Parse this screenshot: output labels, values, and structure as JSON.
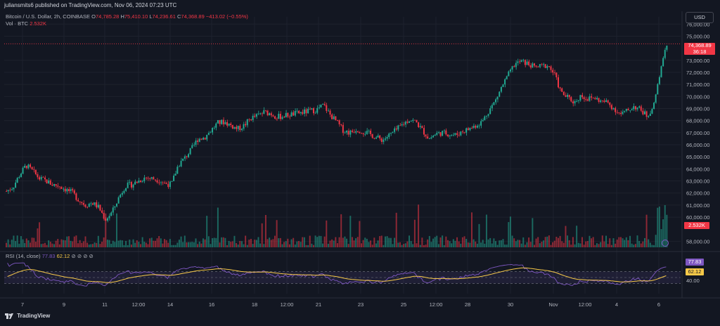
{
  "header": {
    "publish_line": "juliansmits6 published on TradingView.com, Nov 06, 2024 07:23 UTC"
  },
  "legend": {
    "symbol": "Bitcoin / U.S. Dollar, 2h, COINBASE",
    "o_label": "O",
    "o_value": "74,785.28",
    "h_label": "H",
    "h_value": "75,410.10",
    "l_label": "L",
    "l_value": "74,236.61",
    "c_label": "C",
    "c_value": "74,368.89",
    "change": "−413.02 (−0.55%)",
    "vol_label": "Vol · BTC",
    "vol_value": "2.532K"
  },
  "currency": "USD",
  "price_badge": {
    "price": "74,368.89",
    "countdown": "36:18"
  },
  "volume_badge": "2.532K",
  "rsi": {
    "label": "RSI (14, close)",
    "value": "77.83",
    "ma_value": "62.12",
    "icons": "⊘ ⊘ ⊘ ⊘",
    "badge_rsi": "77.83",
    "badge_ma": "62.12",
    "level_label": "40.00"
  },
  "brand": "TradingView",
  "colors": {
    "up": "#22ab94",
    "down": "#f23645",
    "rsi": "#7e57c2",
    "rsi_ma": "#f7c948",
    "bg": "#131722"
  },
  "chart_data": {
    "type": "line",
    "price_ticks": [
      "76,000.00",
      "75,000.00",
      "73,000.00",
      "72,000.00",
      "71,000.00",
      "70,000.00",
      "69,000.00",
      "68,000.00",
      "67,000.00",
      "66,000.00",
      "65,000.00",
      "64,000.00",
      "63,000.00",
      "62,000.00",
      "61,000.00",
      "60,000.00",
      "58,000.00"
    ],
    "x_ticks": [
      "7",
      "9",
      "11",
      "12:00",
      "14",
      "16",
      "18",
      "12:00",
      "21",
      "23",
      "25",
      "12:00",
      "28",
      "30",
      "Nov",
      "12:00",
      "4",
      "6"
    ],
    "close_path": [
      [
        0,
        62150
      ],
      [
        0.01,
        62500
      ],
      [
        0.02,
        63500
      ],
      [
        0.03,
        64300
      ],
      [
        0.04,
        63800
      ],
      [
        0.05,
        63200
      ],
      [
        0.06,
        63000
      ],
      [
        0.07,
        62700
      ],
      [
        0.08,
        62600
      ],
      [
        0.09,
        62300
      ],
      [
        0.1,
        62000
      ],
      [
        0.11,
        61400
      ],
      [
        0.12,
        61000
      ],
      [
        0.13,
        61200
      ],
      [
        0.14,
        60800
      ],
      [
        0.15,
        59800
      ],
      [
        0.16,
        60400
      ],
      [
        0.17,
        61600
      ],
      [
        0.18,
        62600
      ],
      [
        0.19,
        62700
      ],
      [
        0.2,
        63000
      ],
      [
        0.21,
        63300
      ],
      [
        0.22,
        63200
      ],
      [
        0.23,
        63100
      ],
      [
        0.24,
        62800
      ],
      [
        0.25,
        62700
      ],
      [
        0.26,
        64300
      ],
      [
        0.27,
        64900
      ],
      [
        0.28,
        65600
      ],
      [
        0.29,
        66500
      ],
      [
        0.3,
        66600
      ],
      [
        0.31,
        67200
      ],
      [
        0.32,
        67800
      ],
      [
        0.33,
        67900
      ],
      [
        0.34,
        67600
      ],
      [
        0.35,
        67300
      ],
      [
        0.36,
        67600
      ],
      [
        0.37,
        68200
      ],
      [
        0.38,
        68400
      ],
      [
        0.39,
        68700
      ],
      [
        0.4,
        68600
      ],
      [
        0.41,
        68300
      ],
      [
        0.42,
        68400
      ],
      [
        0.43,
        68500
      ],
      [
        0.44,
        68600
      ],
      [
        0.45,
        68700
      ],
      [
        0.46,
        68800
      ],
      [
        0.47,
        68900
      ],
      [
        0.48,
        69300
      ],
      [
        0.49,
        68500
      ],
      [
        0.5,
        67900
      ],
      [
        0.51,
        67200
      ],
      [
        0.52,
        67000
      ],
      [
        0.53,
        67300
      ],
      [
        0.54,
        67100
      ],
      [
        0.55,
        66900
      ],
      [
        0.56,
        66600
      ],
      [
        0.57,
        66400
      ],
      [
        0.58,
        66800
      ],
      [
        0.59,
        67200
      ],
      [
        0.6,
        67700
      ],
      [
        0.61,
        68100
      ],
      [
        0.62,
        67900
      ],
      [
        0.63,
        67200
      ],
      [
        0.64,
        66500
      ],
      [
        0.65,
        66900
      ],
      [
        0.66,
        67000
      ],
      [
        0.67,
        66900
      ],
      [
        0.68,
        66800
      ],
      [
        0.69,
        67100
      ],
      [
        0.7,
        67300
      ],
      [
        0.71,
        67600
      ],
      [
        0.72,
        67900
      ],
      [
        0.73,
        68800
      ],
      [
        0.74,
        69600
      ],
      [
        0.75,
        70800
      ],
      [
        0.76,
        71800
      ],
      [
        0.77,
        72700
      ],
      [
        0.78,
        72900
      ],
      [
        0.79,
        72700
      ],
      [
        0.8,
        72400
      ],
      [
        0.81,
        72500
      ],
      [
        0.82,
        72600
      ],
      [
        0.83,
        71800
      ],
      [
        0.84,
        70300
      ],
      [
        0.85,
        69900
      ],
      [
        0.86,
        69500
      ],
      [
        0.87,
        70100
      ],
      [
        0.88,
        69800
      ],
      [
        0.89,
        69900
      ],
      [
        0.9,
        69600
      ],
      [
        0.91,
        69500
      ],
      [
        0.92,
        69000
      ],
      [
        0.93,
        68500
      ],
      [
        0.94,
        68800
      ],
      [
        0.95,
        69200
      ],
      [
        0.96,
        68900
      ],
      [
        0.97,
        68400
      ],
      [
        0.98,
        69200
      ],
      [
        0.99,
        72000
      ],
      [
        1,
        74368
      ]
    ],
    "rsi_ylim": [
      0,
      100
    ],
    "rsi_levels": [
      70,
      50,
      30
    ]
  }
}
